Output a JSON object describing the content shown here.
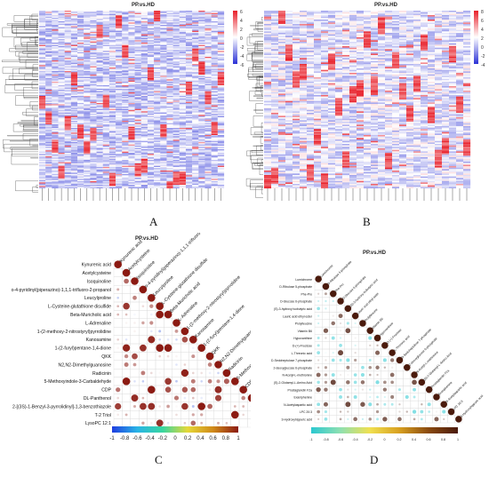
{
  "panels": {
    "A": {
      "label": "A",
      "title": "PP.vs.HD"
    },
    "B": {
      "label": "B",
      "title": "PP.vs.HD"
    },
    "C": {
      "label": "C",
      "title": "PP.vs.HD"
    },
    "D": {
      "label": "D",
      "title": "PP.vs.HD"
    }
  },
  "chart_data": [
    {
      "type": "heatmap",
      "panel": "A",
      "title": "PP.vs.HD",
      "legend": {
        "ticks": [
          "6",
          "4",
          "2",
          "0",
          "-2",
          "-4",
          "-6"
        ],
        "placement": "right"
      },
      "columns": 29,
      "rows": 150,
      "colors": {
        "high": "#e8202a",
        "mid": "#ffffff",
        "low": "#2b31d6"
      }
    },
    {
      "type": "heatmap",
      "panel": "B",
      "title": "PP.vs.HD",
      "legend": {
        "ticks": [
          "8",
          "6",
          "4",
          "2",
          "0",
          "-2",
          "-4"
        ],
        "placement": "right"
      },
      "columns": 29,
      "rows": 120,
      "colors": {
        "high": "#e8202a",
        "mid": "#ffffff",
        "low": "#2b31d6"
      }
    },
    {
      "type": "heatmap",
      "panel": "C",
      "title": "PP.vs.HD",
      "variables": [
        "Kynurenic acid",
        "Acetylcysteine",
        "Isoquinoline",
        "o-4-pyridinyl(piperazino)-1,1,1-trifluoro-2-propanol",
        "Leucylproline",
        "L-Cysteine-glutathione disulfide",
        "Beta-Muricholic acid",
        "L-Adrenaline",
        "1-(2-methoxy-2-nitrostyryl)pyrrolidine",
        "Kanosamine",
        "1-(2-furyl)pentane-1,4-dione",
        "QKK",
        "N2,N2-Dimethylguanosine",
        "Radicinin",
        "5-Methoxyindole-3-Carbaldehyde",
        "CDP",
        "DL-Panthenol",
        "2-[(3S)-1-Benzyl-3-pyrrolidinyl]-1,3-benzothiazole",
        "T-2 Triol",
        "LysoPC 12:1"
      ],
      "colorbar_ticks": [
        "-1",
        "-0.8",
        "-0.6",
        "-0.4",
        "-0.2",
        "0",
        "0.2",
        "0.4",
        "0.6",
        "0.8",
        "1"
      ],
      "colors": {
        "neg": "#2c50d8",
        "zero": "#ffffff",
        "pos": "#8b1a12"
      }
    },
    {
      "type": "heatmap",
      "panel": "D",
      "title": "PP.vs.HD",
      "variables": [
        "Lumichrome",
        "D-Ribulose 5-phosphate",
        "Phe-Pro",
        "D-Glucose 6-phosphate",
        "(S)-3-hydroxy isobutyric acid",
        "Lauric acid ethyl ester",
        "Prolylleucine",
        "Vitamin B6",
        "Hypoxanthine",
        "D-(+)-Fructose",
        "L-Threonic acid",
        "D-Sedoheptulose 7-phosphate",
        "2-deoxyglucose 6-phosphate",
        "N-Acetyl-L-methionine",
        "(S)-2-Glutamyl-L-Amino Acid",
        "Prostaglandin F2a",
        "Exaniphenine",
        "N-Acetylaspartic acid",
        "LPC 20:3",
        "3-Hydroxyhippuric acid"
      ],
      "colorbar_ticks": [
        "-1",
        "-0.8",
        "-0.6",
        "-0.4",
        "-0.2",
        "0",
        "0.2",
        "0.4",
        "0.6",
        "0.8",
        "1"
      ],
      "colors": {
        "neg": "#2bc8d0",
        "zero": "#ffffff",
        "pos": "#4a1a0c"
      }
    }
  ]
}
